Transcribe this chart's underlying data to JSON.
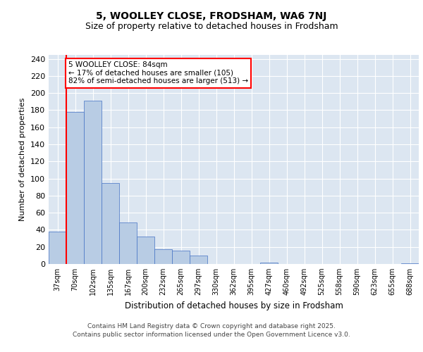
{
  "title": "5, WOOLLEY CLOSE, FRODSHAM, WA6 7NJ",
  "subtitle": "Size of property relative to detached houses in Frodsham",
  "xlabel": "Distribution of detached houses by size in Frodsham",
  "ylabel": "Number of detached properties",
  "categories": [
    "37sqm",
    "70sqm",
    "102sqm",
    "135sqm",
    "167sqm",
    "200sqm",
    "232sqm",
    "265sqm",
    "297sqm",
    "330sqm",
    "362sqm",
    "395sqm",
    "427sqm",
    "460sqm",
    "492sqm",
    "525sqm",
    "558sqm",
    "590sqm",
    "623sqm",
    "655sqm",
    "688sqm"
  ],
  "values": [
    38,
    178,
    191,
    95,
    49,
    32,
    17,
    16,
    10,
    0,
    0,
    0,
    2,
    0,
    0,
    0,
    0,
    0,
    0,
    0,
    1
  ],
  "bar_color": "#b8cce4",
  "bar_edge_color": "#4472c4",
  "grid_color": "#dce6f1",
  "background_color": "#dce6f1",
  "vline_color": "#ff0000",
  "annotation_text": "5 WOOLLEY CLOSE: 84sqm\n← 17% of detached houses are smaller (105)\n82% of semi-detached houses are larger (513) →",
  "annotation_box_color": "#ffffff",
  "annotation_box_edge": "#ff0000",
  "ylim": [
    0,
    245
  ],
  "yticks": [
    0,
    20,
    40,
    60,
    80,
    100,
    120,
    140,
    160,
    180,
    200,
    220,
    240
  ],
  "footer_line1": "Contains HM Land Registry data © Crown copyright and database right 2025.",
  "footer_line2": "Contains public sector information licensed under the Open Government Licence v3.0."
}
